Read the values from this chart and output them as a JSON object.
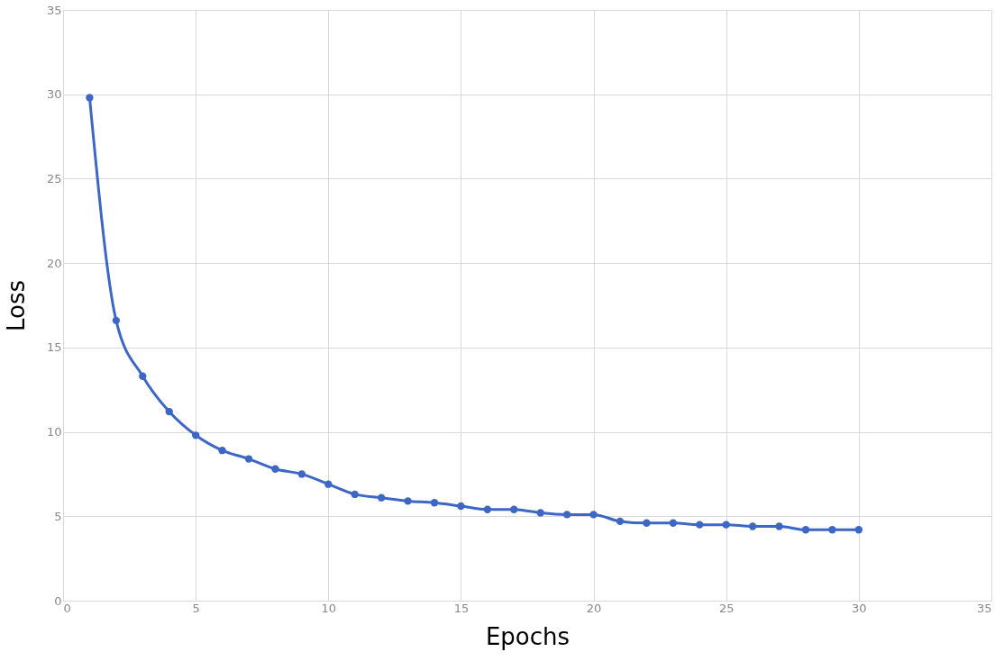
{
  "chart_data": {
    "type": "line",
    "xlabel": "Epochs",
    "ylabel": "Loss",
    "x": [
      1,
      2,
      3,
      4,
      5,
      6,
      7,
      8,
      9,
      10,
      11,
      12,
      13,
      14,
      15,
      16,
      17,
      18,
      19,
      20,
      21,
      22,
      23,
      24,
      25,
      26,
      27,
      28,
      29,
      30
    ],
    "series": [
      {
        "color": "#3d67c4",
        "values": [
          29.8,
          16.6,
          13.3,
          11.2,
          9.8,
          8.9,
          8.4,
          7.8,
          7.5,
          6.9,
          6.3,
          6.1,
          5.9,
          5.8,
          5.6,
          5.4,
          5.4,
          5.2,
          5.1,
          5.1,
          4.7,
          4.6,
          4.6,
          4.5,
          4.5,
          4.4,
          4.4,
          4.2,
          4.2,
          4.2
        ]
      }
    ],
    "xlim": [
      0,
      35
    ],
    "xticks": [
      0,
      5,
      10,
      15,
      20,
      25,
      30,
      35
    ],
    "ylim": [
      0,
      35
    ],
    "yticks": [
      0,
      5,
      10,
      15,
      20,
      25,
      30,
      35
    ],
    "grid": true,
    "marker": "circle",
    "line_style": "solid"
  }
}
